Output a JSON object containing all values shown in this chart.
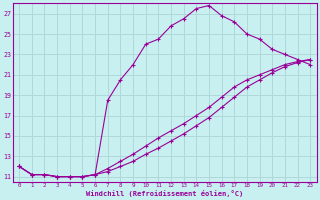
{
  "xlabel": "Windchill (Refroidissement éolien,°C)",
  "bg_color": "#c8f0f0",
  "grid_color": "#b0d8d8",
  "line_color": "#990099",
  "xlim": [
    -0.5,
    23.5
  ],
  "ylim": [
    10.5,
    28.0
  ],
  "xticks": [
    0,
    1,
    2,
    3,
    4,
    5,
    6,
    7,
    8,
    9,
    10,
    11,
    12,
    13,
    14,
    15,
    16,
    17,
    18,
    19,
    20,
    21,
    22,
    23
  ],
  "yticks": [
    11,
    13,
    15,
    17,
    19,
    21,
    23,
    25,
    27
  ],
  "line1_x": [
    0,
    1,
    2,
    3,
    4,
    5,
    6,
    7,
    8,
    9,
    10,
    11,
    12,
    13,
    14,
    15,
    16,
    17,
    18,
    19,
    20,
    21,
    22,
    23
  ],
  "line1_y": [
    12.0,
    11.2,
    11.2,
    11.0,
    11.0,
    11.0,
    11.2,
    18.5,
    20.5,
    22.0,
    24.0,
    24.5,
    25.8,
    26.5,
    27.5,
    27.8,
    26.8,
    26.2,
    25.0,
    24.5,
    23.5,
    23.0,
    22.5,
    22.0
  ],
  "line2_x": [
    0,
    1,
    2,
    3,
    4,
    5,
    6,
    7,
    8,
    9,
    10,
    11,
    12,
    13,
    14,
    15,
    16,
    17,
    18,
    19,
    20,
    21,
    22,
    23
  ],
  "line2_y": [
    12.0,
    11.2,
    11.2,
    11.0,
    11.0,
    11.0,
    11.2,
    11.5,
    12.0,
    12.5,
    13.2,
    13.8,
    14.5,
    15.2,
    16.0,
    16.8,
    17.8,
    18.8,
    19.8,
    20.5,
    21.2,
    21.8,
    22.2,
    22.5
  ],
  "line3_x": [
    0,
    1,
    2,
    3,
    4,
    5,
    6,
    7,
    8,
    9,
    10,
    11,
    12,
    13,
    14,
    15,
    16,
    17,
    18,
    19,
    20,
    21,
    22,
    23
  ],
  "line3_y": [
    12.0,
    11.2,
    11.2,
    11.0,
    11.0,
    11.0,
    11.2,
    11.8,
    12.5,
    13.2,
    14.0,
    14.8,
    15.5,
    16.2,
    17.0,
    17.8,
    18.8,
    19.8,
    20.5,
    21.0,
    21.5,
    22.0,
    22.3,
    22.5
  ]
}
